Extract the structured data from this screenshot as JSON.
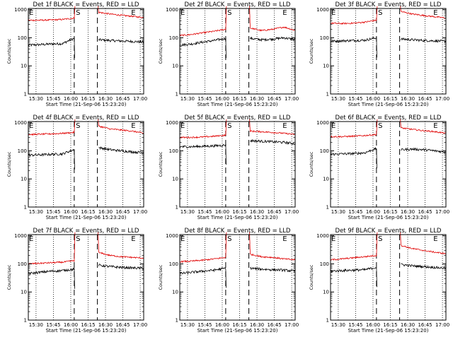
{
  "figure": {
    "xtick_labels": [
      "15:30",
      "15:45",
      "16:00",
      "16:15",
      "16:30",
      "16:45",
      "17:00"
    ],
    "ytick_labels": [
      "1",
      "10",
      "100",
      "1000"
    ],
    "xlabel": "Start Time (21-Sep-06 15:23:20)",
    "ylabel": "Counts/sec",
    "markers": {
      "eclipse_start": "E",
      "saa": "S",
      "eclipse_end": "E"
    },
    "series_colors": {
      "Events": "#000000",
      "LLD": "#e00000"
    }
  },
  "chart_data": [
    {
      "type": "line",
      "title": "Det 1f BLACK = Events, RED = LLD",
      "xlabel": "Start Time (21-Sep-06 15:23:20)",
      "ylabel": "Counts/sec",
      "ylim": [
        1,
        1100
      ],
      "yscale": "log",
      "x_range": [
        "15:23",
        "17:03"
      ],
      "series": [
        {
          "name": "Events",
          "color": "#000000",
          "before": [
            55,
            57,
            60,
            62,
            95
          ],
          "after": [
            85,
            80,
            77,
            74,
            70
          ]
        },
        {
          "name": "LLD",
          "color": "#e00000",
          "before": [
            420,
            420,
            430,
            450,
            500
          ],
          "after": [
            800,
            700,
            630,
            580,
            520
          ]
        }
      ]
    },
    {
      "type": "line",
      "title": "Det 2f BLACK = Events, RED = LLD",
      "xlabel": "Start Time (21-Sep-06 15:23:20)",
      "ylabel": "Counts/sec",
      "ylim": [
        1,
        1100
      ],
      "yscale": "log",
      "x_range": [
        "15:23",
        "17:03"
      ],
      "series": [
        {
          "name": "Events",
          "color": "#000000",
          "before": [
            55,
            60,
            70,
            80,
            95
          ],
          "after": [
            95,
            85,
            90,
            100,
            85
          ]
        },
        {
          "name": "LLD",
          "color": "#e00000",
          "before": [
            120,
            130,
            150,
            170,
            200
          ],
          "after": [
            220,
            180,
            200,
            240,
            180
          ]
        }
      ]
    },
    {
      "type": "line",
      "title": "Det 3f BLACK = Events, RED = LLD",
      "xlabel": "Start Time (21-Sep-06 15:23:20)",
      "ylabel": "Counts/sec",
      "ylim": [
        1,
        1100
      ],
      "yscale": "log",
      "x_range": [
        "15:23",
        "17:03"
      ],
      "series": [
        {
          "name": "Events",
          "color": "#000000",
          "before": [
            75,
            78,
            80,
            82,
            100
          ],
          "after": [
            90,
            85,
            80,
            78,
            74
          ]
        },
        {
          "name": "LLD",
          "color": "#e00000",
          "before": [
            330,
            320,
            330,
            360,
            420
          ],
          "after": [
            850,
            700,
            620,
            560,
            500
          ]
        }
      ]
    },
    {
      "type": "line",
      "title": "Det 4f BLACK = Events, RED = LLD",
      "xlabel": "Start Time (21-Sep-06 15:23:20)",
      "ylabel": "Counts/sec",
      "ylim": [
        1,
        1100
      ],
      "yscale": "log",
      "x_range": [
        "15:23",
        "17:03"
      ],
      "series": [
        {
          "name": "Events",
          "color": "#000000",
          "before": [
            70,
            72,
            75,
            78,
            110
          ],
          "after": [
            130,
            110,
            100,
            92,
            85
          ]
        },
        {
          "name": "LLD",
          "color": "#e00000",
          "before": [
            380,
            390,
            400,
            420,
            450
          ],
          "after": [
            750,
            600,
            550,
            500,
            420
          ]
        }
      ]
    },
    {
      "type": "line",
      "title": "Det 5f BLACK = Events, RED = LLD",
      "xlabel": "Start Time (21-Sep-06 15:23:20)",
      "ylabel": "Counts/sec",
      "ylim": [
        1,
        1100
      ],
      "yscale": "log",
      "x_range": [
        "15:23",
        "17:03"
      ],
      "series": [
        {
          "name": "Events",
          "color": "#000000",
          "before": [
            140,
            140,
            145,
            150,
            160
          ],
          "after": [
            230,
            220,
            210,
            200,
            180
          ]
        },
        {
          "name": "LLD",
          "color": "#e00000",
          "before": [
            300,
            300,
            310,
            330,
            360
          ],
          "after": [
            500,
            480,
            450,
            420,
            380
          ]
        }
      ]
    },
    {
      "type": "line",
      "title": "Det 6f BLACK = Events, RED = LLD",
      "xlabel": "Start Time (21-Sep-06 15:23:20)",
      "ylabel": "Counts/sec",
      "ylim": [
        1,
        1100
      ],
      "yscale": "log",
      "x_range": [
        "15:23",
        "17:03"
      ],
      "series": [
        {
          "name": "Events",
          "color": "#000000",
          "before": [
            75,
            78,
            80,
            85,
            120
          ],
          "after": [
            110,
            115,
            110,
            100,
            90
          ]
        },
        {
          "name": "LLD",
          "color": "#e00000",
          "before": [
            320,
            320,
            330,
            350,
            380
          ],
          "after": [
            650,
            580,
            520,
            480,
            420
          ]
        }
      ]
    },
    {
      "type": "line",
      "title": "Det 7f BLACK = Events, RED = LLD",
      "xlabel": "Start Time (21-Sep-06 15:23:20)",
      "ylabel": "Counts/sec",
      "ylim": [
        1,
        1100
      ],
      "yscale": "log",
      "x_range": [
        "15:23",
        "17:03"
      ],
      "series": [
        {
          "name": "Events",
          "color": "#000000",
          "before": [
            45,
            50,
            55,
            58,
            65
          ],
          "after": [
            90,
            80,
            75,
            72,
            70
          ]
        },
        {
          "name": "LLD",
          "color": "#e00000",
          "before": [
            100,
            105,
            110,
            115,
            130
          ],
          "after": [
            250,
            200,
            180,
            170,
            160
          ]
        }
      ]
    },
    {
      "type": "line",
      "title": "Det 8f BLACK = Events, RED = LLD",
      "xlabel": "Start Time (21-Sep-06 15:23:20)",
      "ylabel": "Counts/sec",
      "ylim": [
        1,
        1100
      ],
      "yscale": "log",
      "x_range": [
        "15:23",
        "17:03"
      ],
      "series": [
        {
          "name": "Events",
          "color": "#000000",
          "before": [
            45,
            50,
            55,
            60,
            70
          ],
          "after": [
            70,
            65,
            62,
            60,
            55
          ]
        },
        {
          "name": "LLD",
          "color": "#e00000",
          "before": [
            120,
            125,
            135,
            150,
            170
          ],
          "after": [
            220,
            180,
            170,
            150,
            140
          ]
        }
      ]
    },
    {
      "type": "line",
      "title": "Det 9f BLACK = Events, RED = LLD",
      "xlabel": "Start Time (21-Sep-06 15:23:20)",
      "ylabel": "Counts/sec",
      "ylim": [
        1,
        1100
      ],
      "yscale": "log",
      "x_range": [
        "15:23",
        "17:03"
      ],
      "series": [
        {
          "name": "Events",
          "color": "#000000",
          "before": [
            55,
            58,
            60,
            62,
            75
          ],
          "after": [
            95,
            85,
            80,
            75,
            70
          ]
        },
        {
          "name": "LLD",
          "color": "#e00000",
          "before": [
            140,
            150,
            165,
            180,
            200
          ],
          "after": [
            450,
            350,
            300,
            260,
            230
          ]
        }
      ]
    }
  ]
}
